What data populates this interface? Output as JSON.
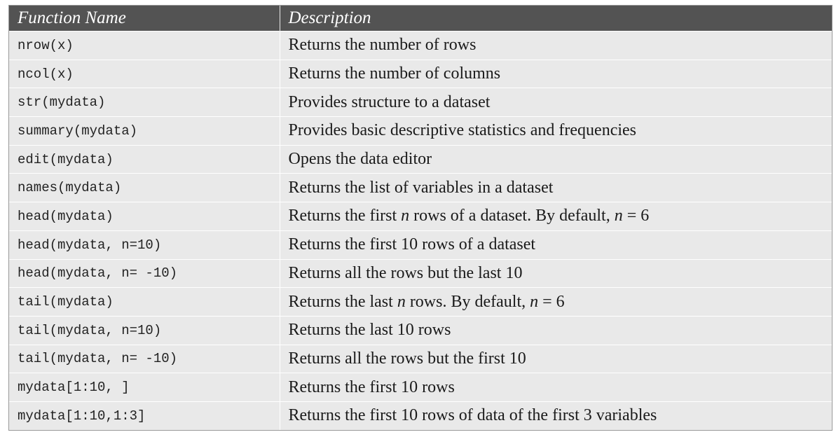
{
  "header": {
    "col_function": "Function Name",
    "col_description": "Description"
  },
  "rows": [
    {
      "fn": "nrow(x)",
      "desc": "Returns the number of rows"
    },
    {
      "fn": "ncol(x)",
      "desc": "Returns the number of columns"
    },
    {
      "fn": "str(mydata)",
      "desc": "Provides structure to a dataset"
    },
    {
      "fn": "summary(mydata)",
      "desc": "Provides basic descriptive statistics and frequencies"
    },
    {
      "fn": "edit(mydata)",
      "desc": "Opens the data editor"
    },
    {
      "fn": "names(mydata)",
      "desc": "Returns the list of variables in a dataset"
    },
    {
      "fn": "head(mydata)",
      "desc": "Returns the first n rows of a dataset. By default, n = 6"
    },
    {
      "fn": "head(mydata, n=10)",
      "desc": "Returns the first 10 rows of a dataset"
    },
    {
      "fn": "head(mydata, n= -10)",
      "desc": "Returns all the rows but the last 10"
    },
    {
      "fn": "tail(mydata)",
      "desc": "Returns the last n rows. By default, n = 6"
    },
    {
      "fn": "tail(mydata, n=10)",
      "desc": "Returns the last 10 rows"
    },
    {
      "fn": "tail(mydata, n= -10)",
      "desc": "Returns all the rows but the first 10"
    },
    {
      "fn": "mydata[1:10, ]",
      "desc": "Returns the first 10 rows"
    },
    {
      "fn": "mydata[1:10,1:3]",
      "desc": "Returns the first 10 rows of data of the first 3 variables"
    }
  ]
}
